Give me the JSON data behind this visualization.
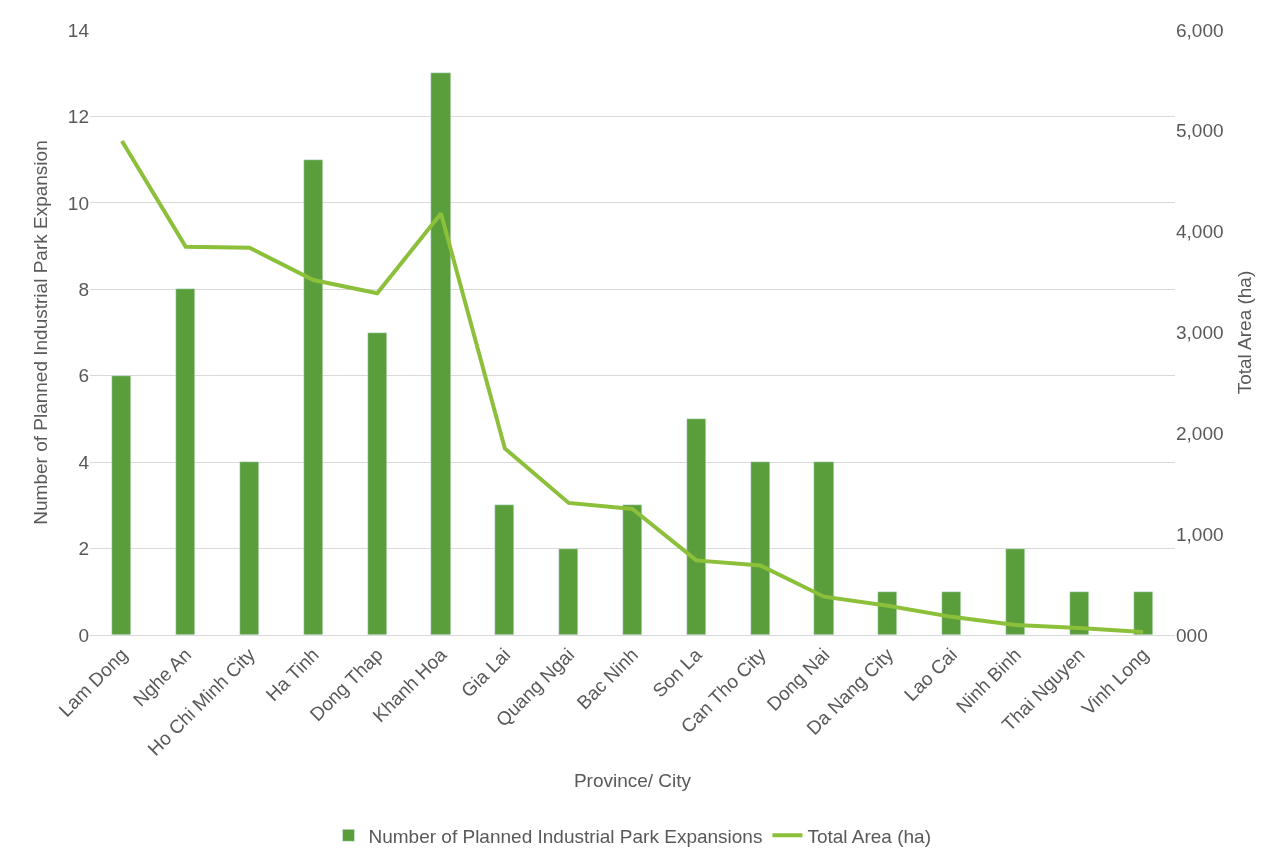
{
  "chart_data": {
    "type": "bar",
    "xlabel": "Province/ City",
    "ylabel": "Number of Planned Industrial Park Expansion",
    "y2label": "Total Area (ha)",
    "categories": [
      "Lam Dong",
      "Nghe An",
      "Ho Chi Minh City",
      "Ha Tinh",
      "Dong Thap",
      "Khanh Hoa",
      "Gia Lai",
      "Quang Ngai",
      "Bac Ninh",
      "Son La",
      "Can Tho City",
      "Dong Nai",
      "Da Nang City",
      "Lao Cai",
      "Ninh Binh",
      "Thai Nguyen",
      "Vinh Long"
    ],
    "series": [
      {
        "name": "Number of Planned Industrial Park Expansions",
        "color": "#5a9e3c",
        "values": [
          6,
          8,
          4,
          11,
          7,
          13,
          3,
          2,
          3,
          5,
          4,
          4,
          1,
          1,
          2,
          1,
          1
        ]
      },
      {
        "name": "Total Area (ha)",
        "type": "line",
        "axis": "y2",
        "color": "#8cbf3a",
        "values": [
          4900,
          3850,
          3840,
          3520,
          3390,
          4180,
          1850,
          1310,
          1250,
          740,
          690,
          380,
          290,
          180,
          100,
          70,
          30
        ]
      }
    ],
    "ylim": [
      0,
      14
    ],
    "yticks": [
      0,
      2,
      4,
      6,
      8,
      10,
      12,
      14
    ],
    "y2lim": [
      0,
      6000
    ],
    "y2ticks": [
      {
        "value": 0,
        "label": "000"
      },
      {
        "value": 1000,
        "label": "1,000"
      },
      {
        "value": 2000,
        "label": "2,000"
      },
      {
        "value": 3000,
        "label": "3,000"
      },
      {
        "value": 4000,
        "label": "4,000"
      },
      {
        "value": 5000,
        "label": "5,000"
      },
      {
        "value": 6000,
        "label": "6,000"
      }
    ],
    "grid": "y",
    "legend": "bottom",
    "marker": "none",
    "line_style": "solid"
  }
}
